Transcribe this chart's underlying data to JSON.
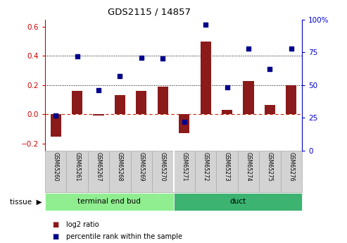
{
  "title": "GDS2115 / 14857",
  "samples": [
    "GSM65260",
    "GSM65261",
    "GSM65267",
    "GSM65268",
    "GSM65269",
    "GSM65270",
    "GSM65271",
    "GSM65272",
    "GSM65273",
    "GSM65274",
    "GSM65275",
    "GSM65276"
  ],
  "log2_ratio": [
    -0.155,
    0.16,
    -0.01,
    0.13,
    0.16,
    0.19,
    -0.13,
    0.5,
    0.03,
    0.23,
    0.065,
    0.2
  ],
  "percentile_rank": [
    27,
    72,
    46,
    57,
    71,
    70,
    22,
    96,
    48,
    78,
    62,
    78
  ],
  "groups": [
    {
      "label": "terminal end bud",
      "start": 0,
      "end": 6,
      "color": "#90EE90"
    },
    {
      "label": "duct",
      "start": 6,
      "end": 12,
      "color": "#3CB371"
    }
  ],
  "tissue_label": "tissue",
  "ylim_left": [
    -0.25,
    0.65
  ],
  "ylim_right": [
    0,
    100
  ],
  "yticks_left": [
    -0.2,
    0.0,
    0.2,
    0.4,
    0.6
  ],
  "yticks_right": [
    0,
    25,
    50,
    75,
    100
  ],
  "bar_color": "#8B1A1A",
  "dot_color": "#00008B",
  "hline_color": "#CC2200",
  "gridline_y": [
    0.2,
    0.4
  ],
  "background_color": "#ffffff",
  "plot_bg_color": "#ffffff",
  "legend_red_label": "log2 ratio",
  "legend_blue_label": "percentile rank within the sample",
  "left_ycolor": "#CC0000",
  "right_ycolor": "#0000CC",
  "label_box_color": "#D3D3D3",
  "label_box_edge_color": "#AAAAAA"
}
